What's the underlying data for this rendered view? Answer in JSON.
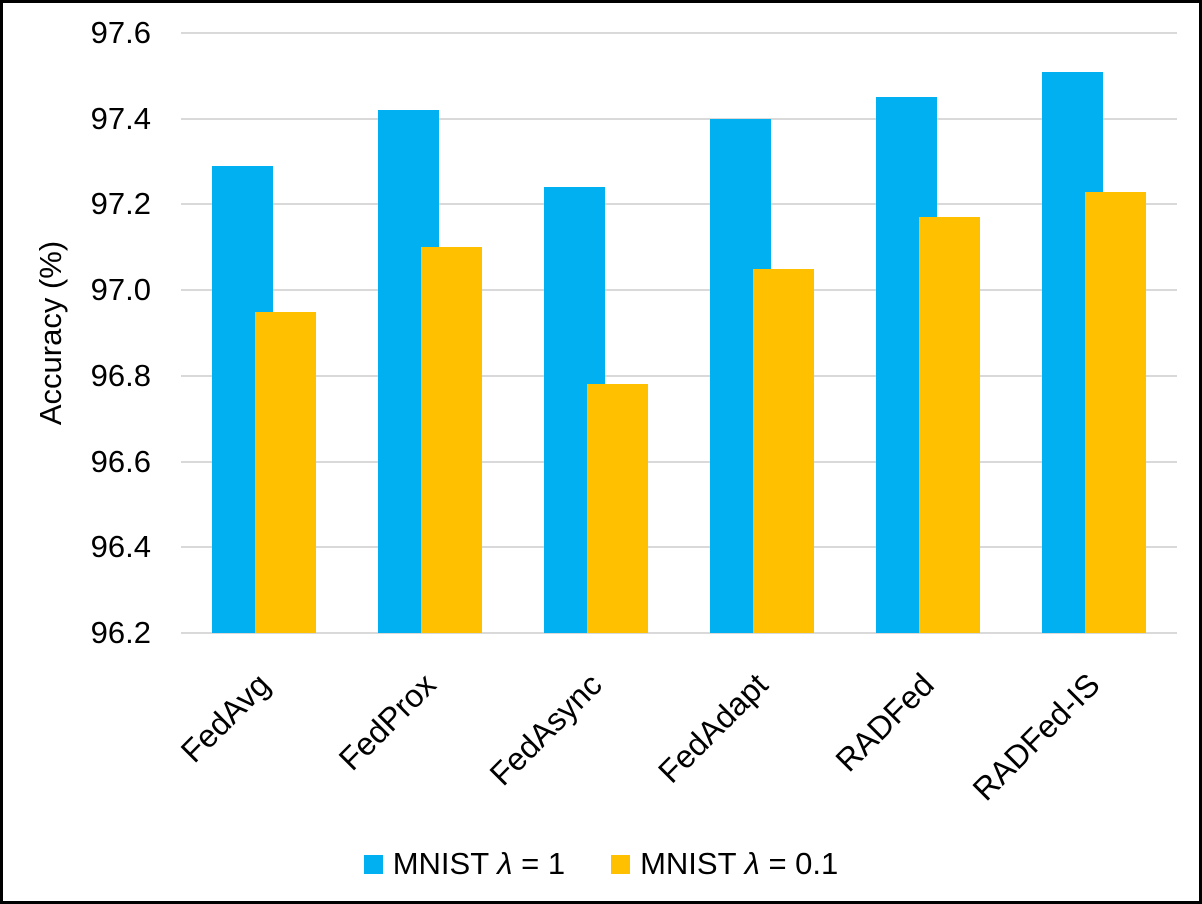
{
  "chart_data": {
    "type": "bar",
    "title": "",
    "xlabel": "",
    "ylabel": "Accuracy (%)",
    "categories": [
      "FedAvg",
      "FedProx",
      "FedAsync",
      "FedAdapt",
      "RADFed",
      "RADFed-IS"
    ],
    "series": [
      {
        "name": "MNIST λ = 1",
        "color": "#00B0F0",
        "values": [
          97.29,
          97.42,
          97.24,
          97.4,
          97.45,
          97.51
        ]
      },
      {
        "name": "MNIST λ = 0.1",
        "color": "#FFC000",
        "values": [
          96.95,
          97.1,
          96.78,
          97.05,
          97.17,
          97.23
        ]
      }
    ],
    "ylim": [
      96.2,
      97.6
    ],
    "ytick_step": 0.2,
    "ytick_labels": [
      "96.2",
      "96.4",
      "96.6",
      "96.8",
      "97.0",
      "97.2",
      "97.4",
      "97.6"
    ],
    "grid": "horizontal-only",
    "legend_position": "bottom",
    "colors": {
      "gridline": "#D9D9D9",
      "text": "#000000",
      "background": "#FFFFFF",
      "frame_border": "#000000"
    }
  }
}
